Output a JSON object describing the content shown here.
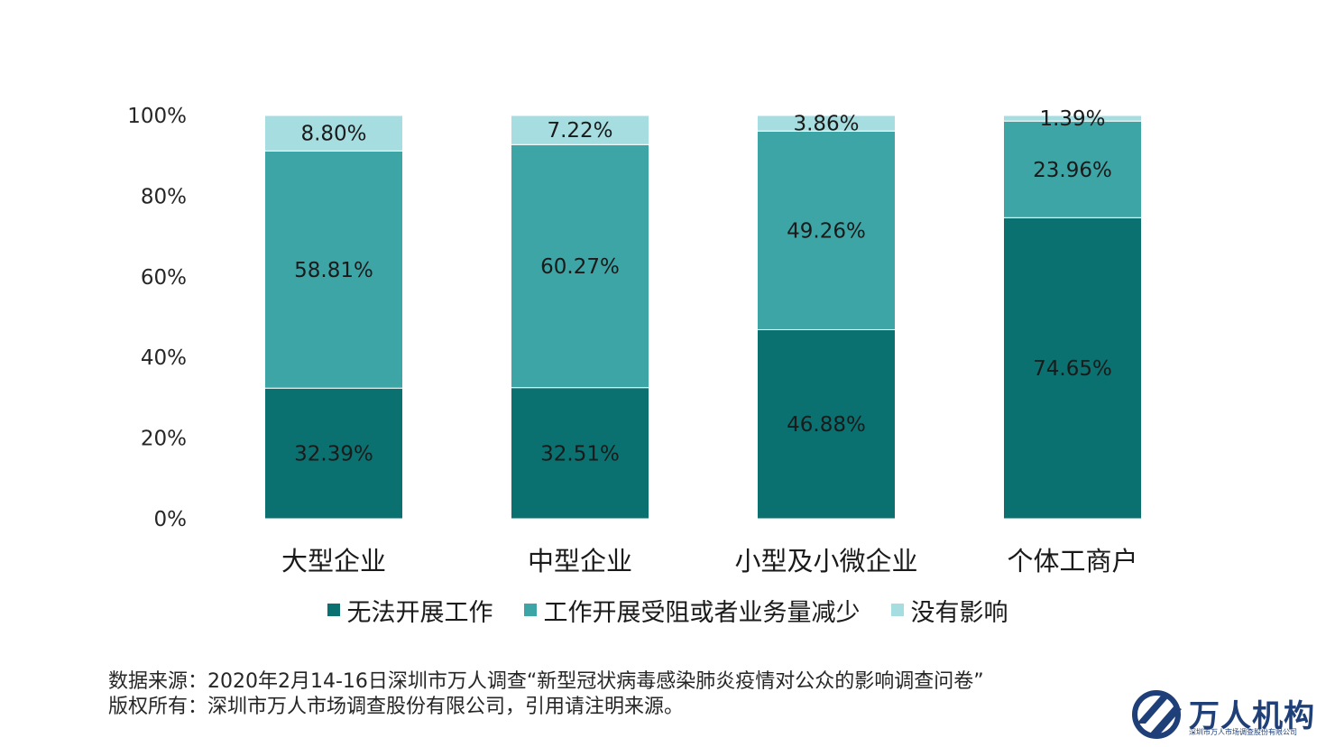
{
  "chart_data": {
    "type": "bar",
    "stacked": true,
    "categories": [
      "大型企业",
      "中型企业",
      "小型及小微企业",
      "个体工商户"
    ],
    "series": [
      {
        "name": "无法开展工作",
        "values": [
          32.39,
          32.51,
          46.88,
          74.65
        ],
        "labels": [
          "32.39%",
          "32.51%",
          "46.88%",
          "74.65%"
        ]
      },
      {
        "name": "工作开展受阻或者业务量减少",
        "values": [
          58.81,
          60.27,
          49.26,
          23.96
        ],
        "labels": [
          "58.81%",
          "60.27%",
          "49.26%",
          "23.96%"
        ]
      },
      {
        "name": "没有影响",
        "values": [
          8.8,
          7.22,
          3.86,
          1.39
        ],
        "labels": [
          "8.80%",
          "7.22%",
          "3.86%",
          "1.39%"
        ]
      }
    ],
    "yticks": [
      "0%",
      "20%",
      "40%",
      "60%",
      "80%",
      "100%"
    ],
    "ylim": [
      0,
      100
    ],
    "grid": false,
    "legend_position": "bottom",
    "colors": [
      "#0a7170",
      "#3ea5a6",
      "#a6dde0"
    ]
  },
  "footer": {
    "source": "数据来源：2020年2月14-16日深圳市万人调查“新型冠状病毒感染肺炎疫情对公众的影响调查问卷”",
    "copyright": "版权所有：深圳市万人市场调查股份有限公司，引用请注明来源。"
  },
  "logo": {
    "name": "万人机构",
    "subtitle": "深圳市万人市场调查股份有限公司"
  }
}
